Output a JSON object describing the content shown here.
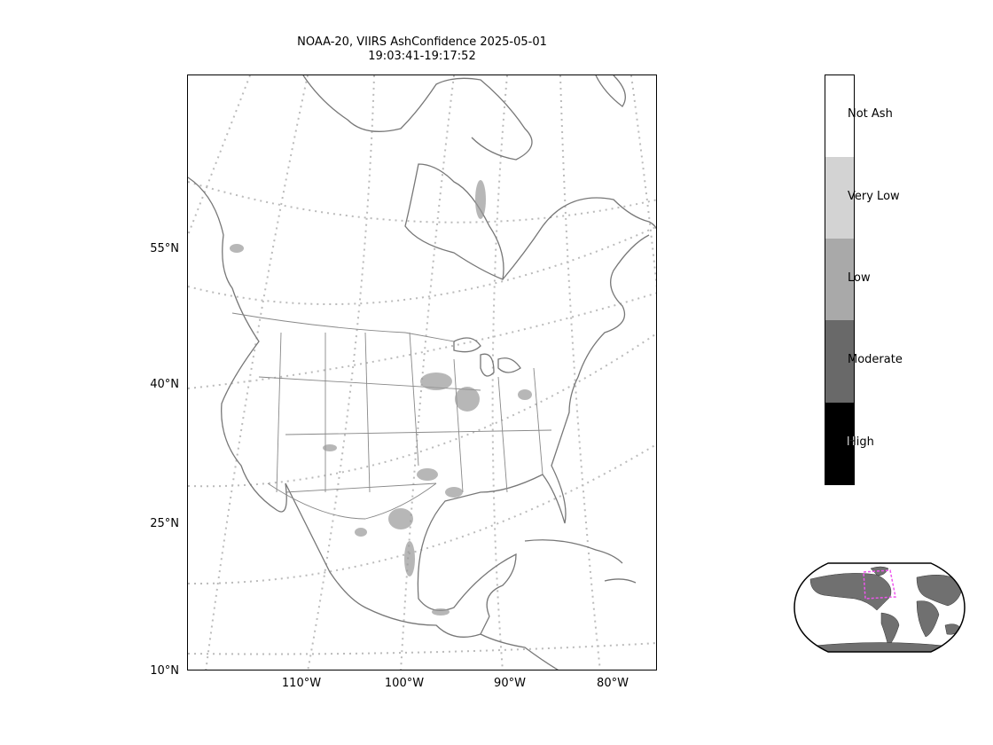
{
  "figure": {
    "title_line1": "NOAA-20, VIIRS AshConfidence 2025-05-01",
    "title_line2": "19:03:41-19:17:52"
  },
  "map": {
    "projection": "conic",
    "latitude_ticks": [
      "55°N",
      "40°N",
      "25°N",
      "10°N"
    ],
    "longitude_ticks": [
      "110°W",
      "100°W",
      "90°W",
      "80°W"
    ],
    "grid": "dotted graticule",
    "field": "AshConfidence",
    "coastline_color": "#777777",
    "gridline_color": "#bbbbbb",
    "detection_color": "#999999"
  },
  "colorbar": {
    "categories": [
      {
        "label": "Not Ash",
        "color": "#ffffff"
      },
      {
        "label": "Very Low",
        "color": "#d3d3d3"
      },
      {
        "label": "Low",
        "color": "#a9a9a9"
      },
      {
        "label": "Moderate",
        "color": "#696969"
      },
      {
        "label": "High",
        "color": "#000000"
      }
    ]
  },
  "inset_globe": {
    "description_label": "",
    "land_color": "#707070",
    "outline_color": "#000000",
    "domain_box_color": "#ee55ee"
  }
}
